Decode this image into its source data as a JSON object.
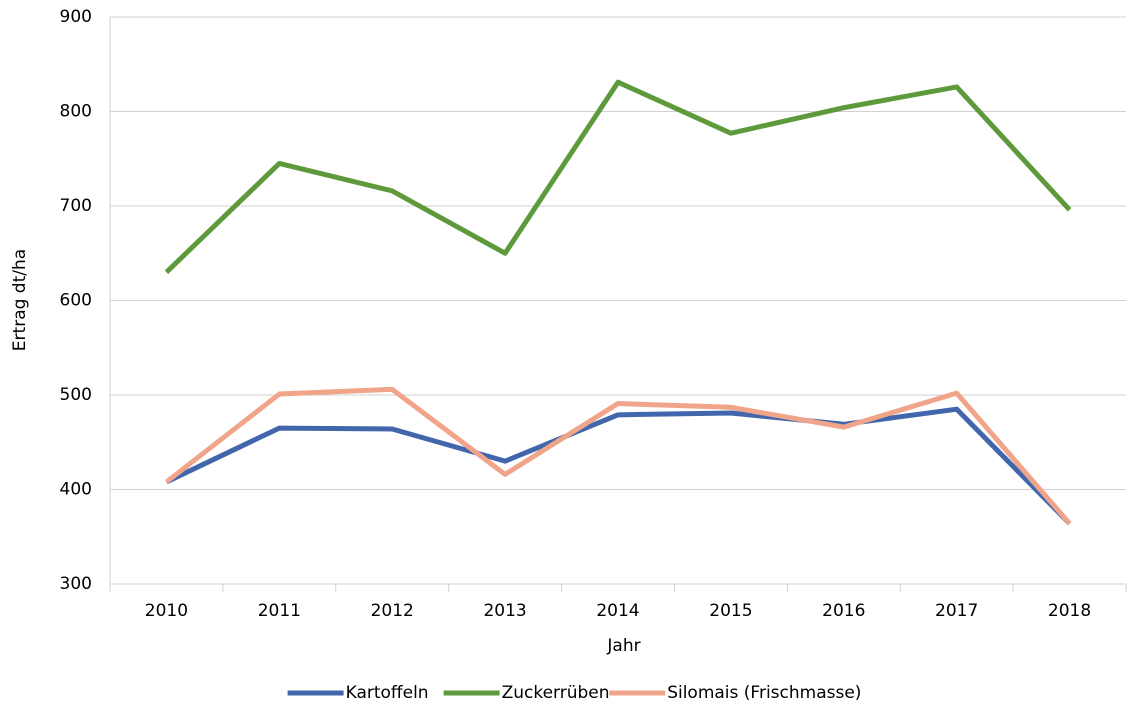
{
  "chart_data": {
    "type": "line",
    "x_label": "Jahr",
    "y_label": "Ertrag dt/ha",
    "categories": [
      "2010",
      "2011",
      "2012",
      "2013",
      "2014",
      "2015",
      "2016",
      "2017",
      "2018"
    ],
    "series": [
      {
        "name": "Kartoffeln",
        "color": "#4166ac",
        "values": [
          408,
          465,
          464,
          430,
          479,
          481,
          469,
          485,
          364
        ]
      },
      {
        "name": "Zuckerrüben",
        "color": "#5e9a3c",
        "values": [
          630,
          745,
          716,
          650,
          831,
          777,
          804,
          826,
          696
        ]
      },
      {
        "name": "Silomais (Frischmasse)",
        "color": "#f0a58a",
        "values": [
          408,
          501,
          506,
          416,
          491,
          487,
          466,
          502,
          364
        ]
      }
    ],
    "ylim": [
      300,
      900
    ],
    "yticks": [
      300,
      400,
      500,
      600,
      700,
      800,
      900
    ],
    "grid": true,
    "legend": "bottom"
  }
}
